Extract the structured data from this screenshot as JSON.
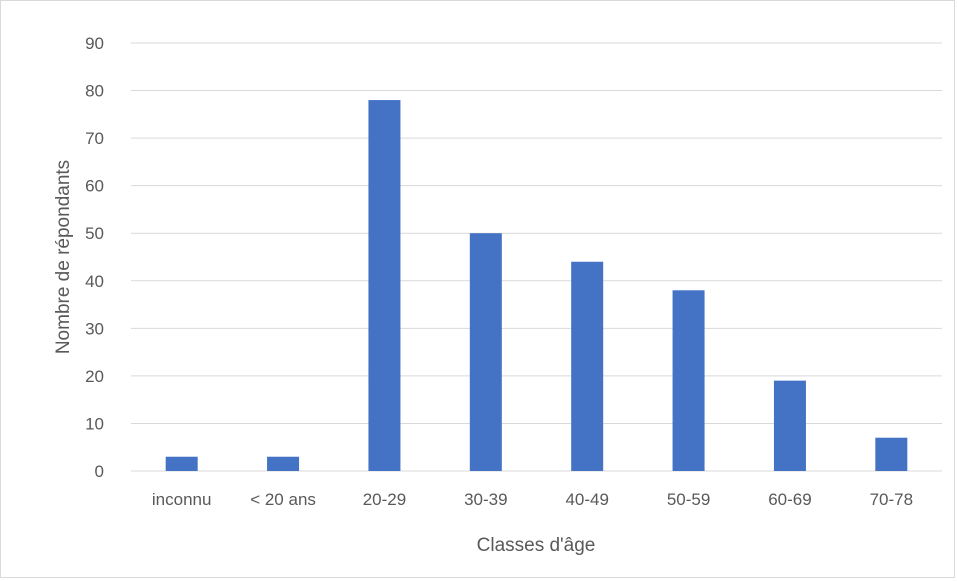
{
  "chart_data": {
    "type": "bar",
    "title": "",
    "xlabel": "Classes d'âge",
    "ylabel": "Nombre de répondants",
    "categories": [
      "inconnu",
      "< 20 ans",
      "20-29",
      "30-39",
      "40-49",
      "50-59",
      "60-69",
      "70-78"
    ],
    "values": [
      3,
      3,
      78,
      50,
      44,
      38,
      19,
      7
    ],
    "ylim": [
      0,
      90
    ],
    "yticks": [
      0,
      10,
      20,
      30,
      40,
      50,
      60,
      70,
      80,
      90
    ],
    "grid": true,
    "legend": "none",
    "bar_color": "#4472C4",
    "gridline_color": "#D9D9D9"
  }
}
